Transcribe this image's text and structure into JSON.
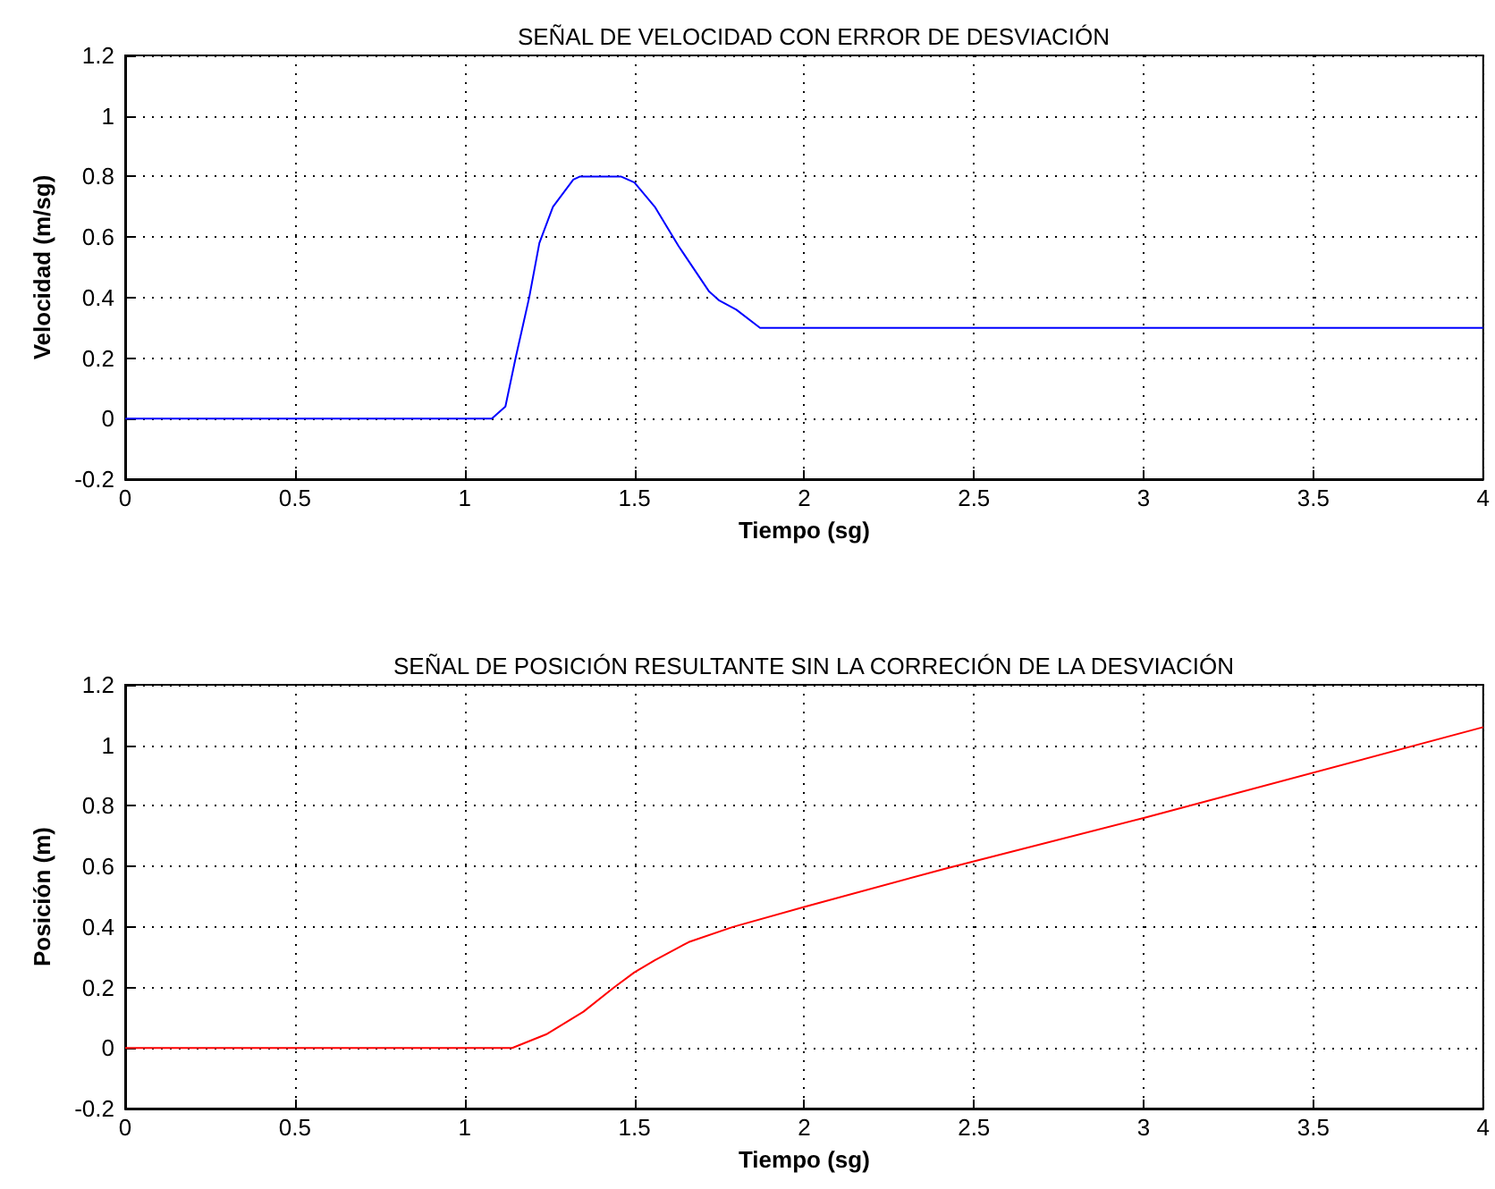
{
  "chart_data": [
    {
      "type": "line",
      "title": "SEÑAL DE VELOCIDAD CON ERROR DE DESVIACIÓN",
      "xlabel": "Tiempo (sg)",
      "ylabel": "Velocidad (m/sg)",
      "series": [
        {
          "color": "#0000ff",
          "x": [
            0,
            1.08,
            1.12,
            1.15,
            1.19,
            1.22,
            1.26,
            1.32,
            1.34,
            1.46,
            1.5,
            1.56,
            1.63,
            1.72,
            1.75,
            1.8,
            1.87,
            4
          ],
          "values": [
            0,
            0,
            0.04,
            0.2,
            0.4,
            0.58,
            0.7,
            0.79,
            0.8,
            0.8,
            0.78,
            0.7,
            0.57,
            0.42,
            0.39,
            0.36,
            0.3,
            0.3
          ]
        }
      ],
      "xlim": [
        0,
        4
      ],
      "ylim": [
        -0.2,
        1.2
      ],
      "xticks": [
        0,
        0.5,
        1,
        1.5,
        2,
        2.5,
        3,
        3.5,
        4
      ],
      "yticks": [
        -0.2,
        0,
        0.2,
        0.4,
        0.6,
        0.8,
        1,
        1.2
      ],
      "grid": true
    },
    {
      "type": "line",
      "title": "SEÑAL DE POSICIÓN RESULTANTE SIN LA CORRECIÓN DE LA DESVIACIÓN",
      "xlabel": "Tiempo (sg)",
      "ylabel": "Posición (m)",
      "series": [
        {
          "color": "#ff0000",
          "x": [
            0,
            1.14,
            1.24,
            1.35,
            1.44,
            1.5,
            1.56,
            1.66,
            1.79,
            2,
            2.42,
            3,
            4
          ],
          "values": [
            0,
            0,
            0.045,
            0.12,
            0.2,
            0.25,
            0.29,
            0.35,
            0.4,
            0.466,
            0.594,
            0.76,
            1.06
          ]
        }
      ],
      "xlim": [
        0,
        4
      ],
      "ylim": [
        -0.2,
        1.2
      ],
      "xticks": [
        0,
        0.5,
        1,
        1.5,
        2,
        2.5,
        3,
        3.5,
        4
      ],
      "yticks": [
        -0.2,
        0,
        0.2,
        0.4,
        0.6,
        0.8,
        1,
        1.2
      ],
      "grid": true
    }
  ]
}
